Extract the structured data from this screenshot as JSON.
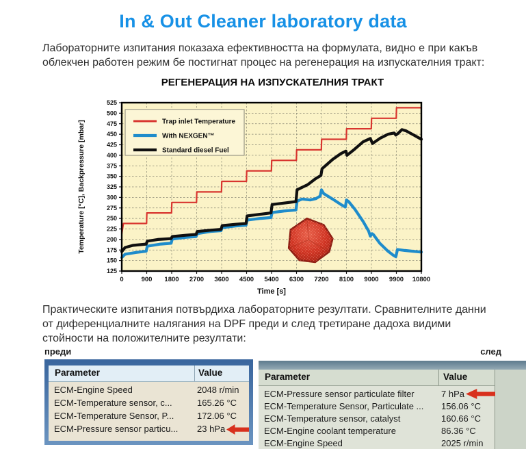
{
  "page": {
    "title": "In & Out Cleaner laboratory data",
    "intro_paragraph": "Лабораторните изпитания показаха ефективността на формулата, видно е при какъв облекчен работен режим бе постигнат процес на регенерация на изпускателния тракт:",
    "results_paragraph": "Практическите изпитания потвърдиха лабораторните резултати. Сравнителните данни от диференциалните налягания на DPF преди и след третиране дадоха видими стойности на положителните резултати:"
  },
  "colors": {
    "title_blue": "#1791e6",
    "arrow_red": "#d8301d",
    "table_frame_blue": "#4e80b2",
    "chart_plot_bg": "#fbf3c7",
    "legend_bg": "#fcf6d6",
    "grid_gray": "#8a8875"
  },
  "chart_data": {
    "type": "line",
    "title": "РЕГЕНЕРАЦИЯ НА ИЗПУСКАТЕЛНИЯ ТРАКТ",
    "xlabel": "Time [s]",
    "ylabel": "Temperature [°C],  Backpressure [mbar]",
    "xlim": [
      0,
      10800
    ],
    "ylim": [
      125,
      525
    ],
    "x_ticks": [
      0,
      900,
      1800,
      2700,
      3600,
      4500,
      5400,
      6300,
      7200,
      8100,
      9000,
      9900,
      10800
    ],
    "y_ticks": [
      125,
      150,
      175,
      200,
      225,
      250,
      275,
      300,
      325,
      350,
      375,
      400,
      425,
      450,
      475,
      500,
      525
    ],
    "grid": "dashed",
    "legend_position": "top-left",
    "series": [
      {
        "name": "Trap inlet Temperature",
        "color": "#d8352f",
        "width": 2.2,
        "points": [
          [
            0,
            213
          ],
          [
            60,
            238
          ],
          [
            895,
            238
          ],
          [
            905,
            263
          ],
          [
            1795,
            263
          ],
          [
            1805,
            288
          ],
          [
            2695,
            288
          ],
          [
            2705,
            313
          ],
          [
            3595,
            313
          ],
          [
            3605,
            338
          ],
          [
            4495,
            338
          ],
          [
            4505,
            363
          ],
          [
            5395,
            363
          ],
          [
            5405,
            388
          ],
          [
            6295,
            388
          ],
          [
            6305,
            413
          ],
          [
            7195,
            413
          ],
          [
            7205,
            438
          ],
          [
            8095,
            438
          ],
          [
            8105,
            463
          ],
          [
            8995,
            463
          ],
          [
            9005,
            488
          ],
          [
            9895,
            488
          ],
          [
            9905,
            513
          ],
          [
            10800,
            513
          ]
        ]
      },
      {
        "name": "With NEXGEN™",
        "color": "#1f8ccb",
        "width": 4.2,
        "points": [
          [
            0,
            157
          ],
          [
            120,
            165
          ],
          [
            500,
            169
          ],
          [
            880,
            172
          ],
          [
            920,
            184
          ],
          [
            1400,
            189
          ],
          [
            1780,
            191
          ],
          [
            1820,
            201
          ],
          [
            2300,
            205
          ],
          [
            2680,
            207
          ],
          [
            2720,
            214
          ],
          [
            3200,
            219
          ],
          [
            3580,
            221
          ],
          [
            3620,
            228
          ],
          [
            4100,
            232
          ],
          [
            4480,
            234
          ],
          [
            4520,
            246
          ],
          [
            5000,
            250
          ],
          [
            5380,
            252
          ],
          [
            5420,
            264
          ],
          [
            5900,
            268
          ],
          [
            6280,
            270
          ],
          [
            6320,
            291
          ],
          [
            6500,
            296
          ],
          [
            6800,
            294
          ],
          [
            7000,
            297
          ],
          [
            7150,
            303
          ],
          [
            7200,
            318
          ],
          [
            7280,
            309
          ],
          [
            7600,
            296
          ],
          [
            7900,
            283
          ],
          [
            8060,
            277
          ],
          [
            8100,
            294
          ],
          [
            8180,
            290
          ],
          [
            8400,
            272
          ],
          [
            8700,
            243
          ],
          [
            8900,
            220
          ],
          [
            8960,
            208
          ],
          [
            9020,
            214
          ],
          [
            9080,
            211
          ],
          [
            9300,
            191
          ],
          [
            9600,
            172
          ],
          [
            9800,
            162
          ],
          [
            9880,
            159
          ],
          [
            9940,
            176
          ],
          [
            10200,
            174
          ],
          [
            10500,
            172
          ],
          [
            10800,
            170
          ]
        ]
      },
      {
        "name": "Standard diesel Fuel",
        "color": "#101010",
        "width": 4.2,
        "points": [
          [
            0,
            171
          ],
          [
            120,
            181
          ],
          [
            400,
            186
          ],
          [
            880,
            189
          ],
          [
            920,
            196
          ],
          [
            1300,
            200
          ],
          [
            1780,
            202
          ],
          [
            1820,
            207
          ],
          [
            2300,
            210
          ],
          [
            2680,
            212
          ],
          [
            2720,
            219
          ],
          [
            3200,
            222
          ],
          [
            3580,
            224
          ],
          [
            3620,
            233
          ],
          [
            4100,
            236
          ],
          [
            4480,
            238
          ],
          [
            4520,
            256
          ],
          [
            5000,
            260
          ],
          [
            5380,
            263
          ],
          [
            5420,
            283
          ],
          [
            5900,
            287
          ],
          [
            6280,
            290
          ],
          [
            6320,
            318
          ],
          [
            6700,
            330
          ],
          [
            7000,
            345
          ],
          [
            7180,
            352
          ],
          [
            7220,
            368
          ],
          [
            7600,
            390
          ],
          [
            7900,
            404
          ],
          [
            8080,
            410
          ],
          [
            8120,
            400
          ],
          [
            8400,
            415
          ],
          [
            8700,
            432
          ],
          [
            8960,
            440
          ],
          [
            9040,
            428
          ],
          [
            9300,
            440
          ],
          [
            9600,
            450
          ],
          [
            9820,
            453
          ],
          [
            9880,
            448
          ],
          [
            9960,
            452
          ],
          [
            10100,
            461
          ],
          [
            10250,
            458
          ],
          [
            10500,
            449
          ],
          [
            10800,
            438
          ]
        ]
      }
    ]
  },
  "tables": {
    "before": {
      "label": "преди",
      "headers": [
        "Parameter",
        "Value"
      ],
      "rows": [
        [
          "ECM-Engine Speed",
          "2048 r/min"
        ],
        [
          "ECM-Temperature sensor, c...",
          "165.26 °C"
        ],
        [
          "ECM-Temperature Sensor, P...",
          "172.06 °C"
        ],
        [
          "ECM-Pressure sensor particu...",
          "23 hPa"
        ]
      ],
      "highlight_row": 3
    },
    "after": {
      "label": "след",
      "headers": [
        "Parameter",
        "Value"
      ],
      "rows": [
        [
          "ECM-Pressure sensor particulate filter",
          "7 hPa"
        ],
        [
          "ECM-Temperature Sensor, Particulate ...",
          "156.06 °C"
        ],
        [
          "ECM-Temperature sensor, catalyst",
          "160.66 °C"
        ],
        [
          "ECM-Engine coolant temperature",
          "86.36 °C"
        ],
        [
          "ECM-Engine Speed",
          "2025 r/min"
        ]
      ],
      "highlight_row": 0
    }
  }
}
